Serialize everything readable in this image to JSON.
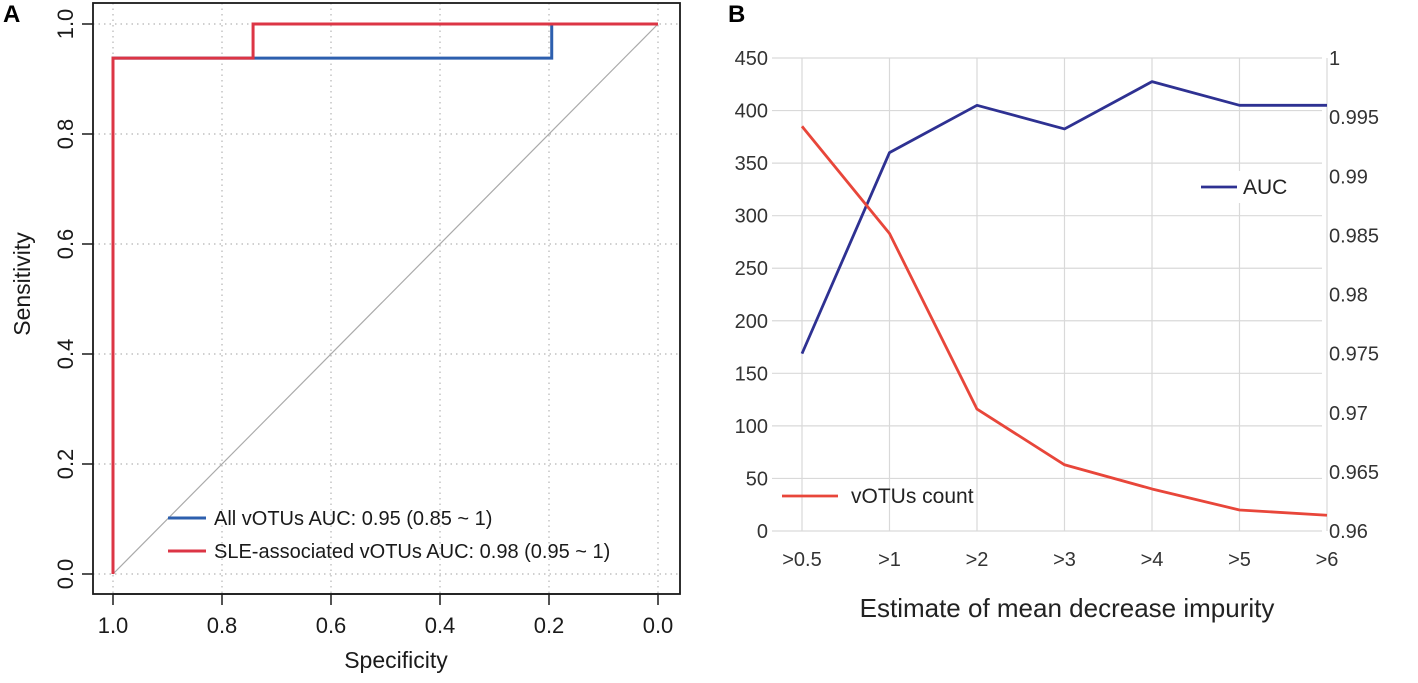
{
  "chart_data": [
    {
      "panel": "A",
      "type": "line",
      "xlabel": "Specificity",
      "ylabel": "Sensitivity",
      "xlim": [
        1.0,
        0.0
      ],
      "ylim": [
        0.0,
        1.0
      ],
      "x_ticks": [
        "1.0",
        "0.8",
        "0.6",
        "0.4",
        "0.2",
        "0.0"
      ],
      "y_ticks": [
        "0.0",
        "0.2",
        "0.4",
        "0.6",
        "0.8",
        "1.0"
      ],
      "grid": "dotted",
      "legend_position": "bottom-right",
      "series": [
        {
          "name": "All vOTUs AUC: 0.95 (0.85 ~ 1)",
          "color": "#2d5fae",
          "points": [
            [
              1.0,
              0.0
            ],
            [
              1.0,
              0.938
            ],
            [
              0.195,
              0.938
            ],
            [
              0.195,
              1.0
            ],
            [
              0.0,
              1.0
            ]
          ]
        },
        {
          "name": "SLE-associated vOTUs AUC: 0.98 (0.95 ~ 1)",
          "color": "#dc3545",
          "points": [
            [
              1.0,
              0.0
            ],
            [
              1.0,
              0.938
            ],
            [
              0.743,
              0.938
            ],
            [
              0.743,
              1.0
            ],
            [
              0.0,
              1.0
            ]
          ]
        }
      ],
      "reference_line": {
        "from": [
          1.0,
          0.0
        ],
        "to": [
          0.0,
          1.0
        ],
        "color": "#aaaaaa"
      }
    },
    {
      "panel": "B",
      "type": "line",
      "xlabel": "Estimate of mean decrease impurity",
      "categories": [
        ">0.5",
        ">1",
        ">2",
        ">3",
        ">4",
        ">5",
        ">6"
      ],
      "y_left_ticks": [
        "0",
        "50",
        "100",
        "150",
        "200",
        "250",
        "300",
        "350",
        "400",
        "450"
      ],
      "y_left_lim": [
        0,
        450
      ],
      "y_right_ticks": [
        "0.96",
        "0.965",
        "0.97",
        "0.975",
        "0.98",
        "0.985",
        "0.99",
        "0.995",
        "1"
      ],
      "y_right_lim": [
        0.96,
        1.0
      ],
      "grid": "solid",
      "series": [
        {
          "name": "AUC",
          "axis": "right",
          "color": "#2e3192",
          "values": [
            0.975,
            0.992,
            0.996,
            0.994,
            0.998,
            0.996,
            0.996
          ]
        },
        {
          "name": "vOTUs count",
          "axis": "left",
          "color": "#e8463a",
          "values": [
            385,
            283,
            116,
            63,
            40,
            20,
            15
          ]
        }
      ]
    }
  ]
}
